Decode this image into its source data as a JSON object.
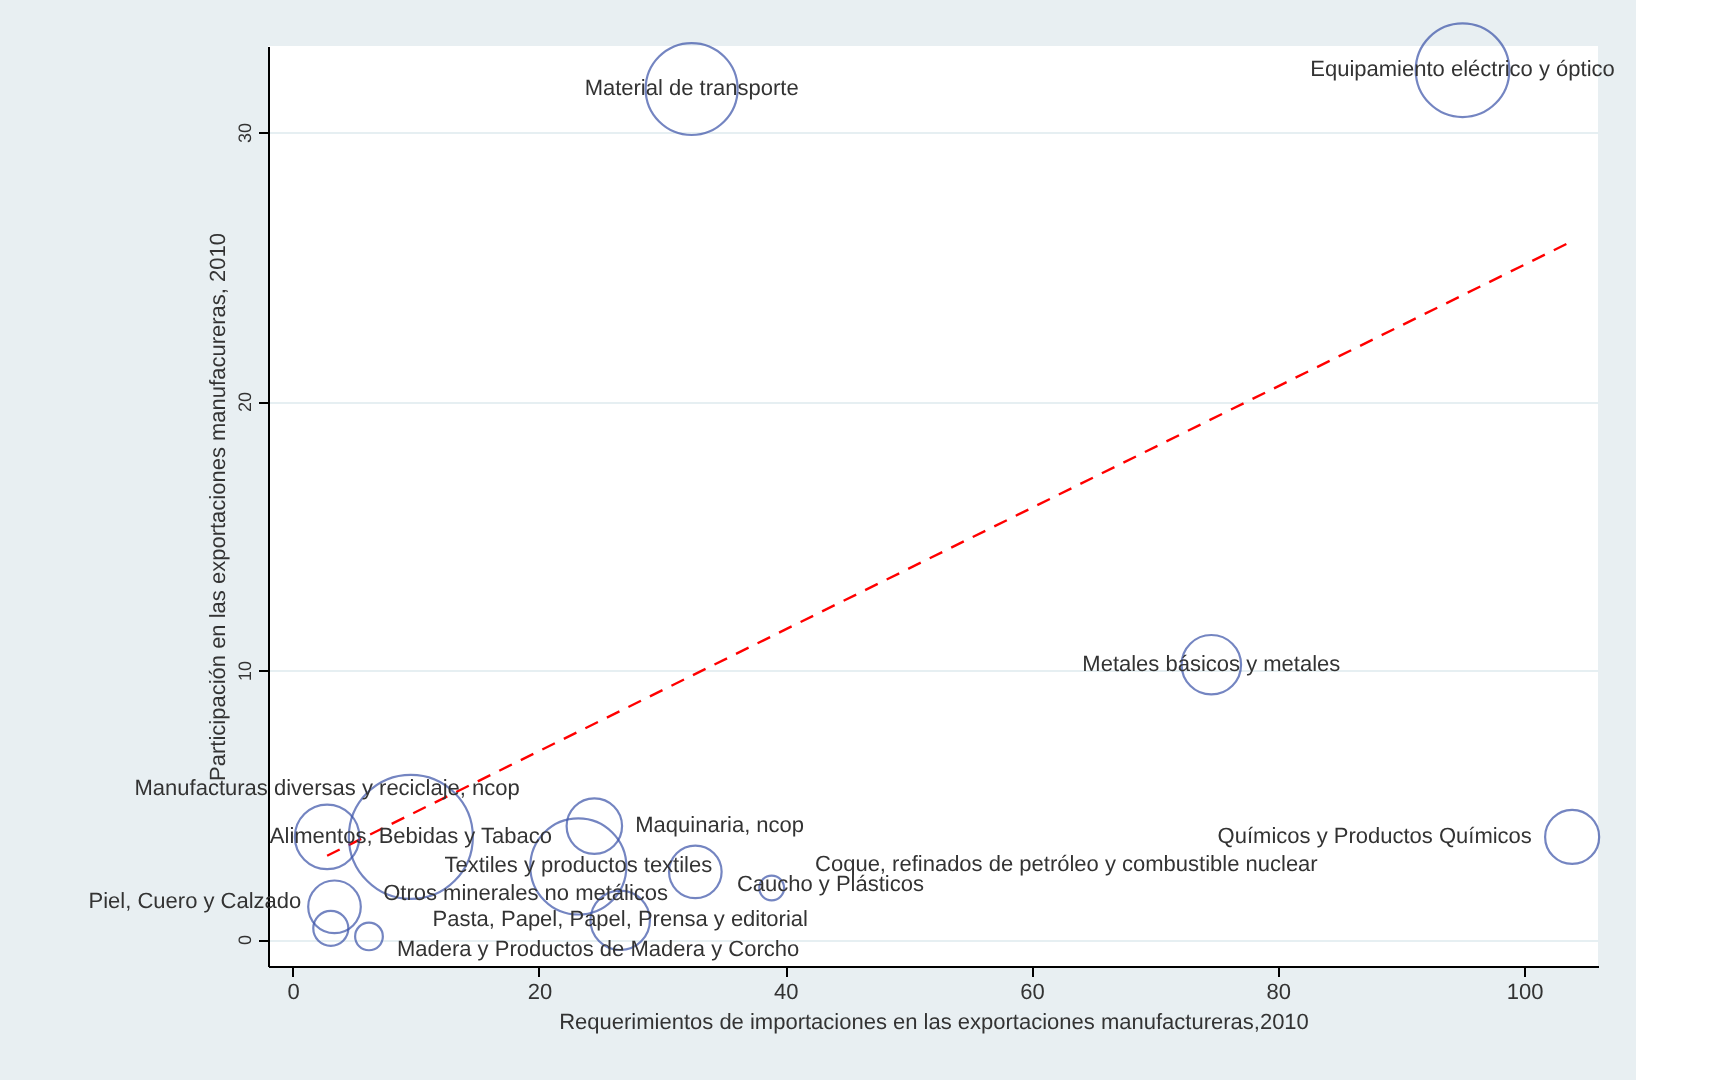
{
  "chart_data": {
    "type": "bubble",
    "xlabel": "Requerimientos de importaciones en las exportaciones manufactureras,2010",
    "ylabel": "Participación en las exportaciones manufacureras, 2010",
    "xlim": [
      -2,
      106
    ],
    "ylim": [
      -1,
      33.2
    ],
    "xticks": [
      0,
      20,
      40,
      60,
      80,
      100
    ],
    "yticks": [
      0,
      10,
      20,
      30
    ],
    "grid": "y",
    "series": [
      {
        "color": "#3a52a8",
        "x": [
          95.0,
          32.4,
          74.6,
          103.9,
          9.6,
          2.8,
          24.5,
          23.2,
          32.7,
          38.9,
          26.6,
          3.4,
          3.1,
          6.2
        ],
        "values": [
          32.3,
          31.6,
          10.2,
          3.8,
          3.8,
          3.8,
          4.2,
          2.7,
          2.5,
          1.9,
          0.7,
          1.2,
          0.4,
          0.1
        ],
        "sizes": [
          0.57,
          0.55,
          0.23,
          0.19,
          1,
          0.27,
          0.2,
          0.6,
          0.18,
          0.04,
          0.23,
          0.18,
          0.08,
          0.05
        ]
      },
      {
        "type": "line",
        "color": "#ff0000",
        "line_style": "dashed",
        "x": [
          2.8,
          103.7
        ],
        "values": [
          3.1,
          25.9
        ]
      }
    ],
    "annotations": [
      {
        "text": "Equipamiento eléctrico y óptico",
        "x": 95.0,
        "y": 32.3
      },
      {
        "text": "Material de transporte",
        "x": 32.4,
        "y": 31.6
      },
      {
        "text": "Metales básicos y metales",
        "x": 74.6,
        "y": 10.2
      },
      {
        "text": "Químicos y Productos Químicos",
        "x": 103.9,
        "y": 3.8
      },
      {
        "text": "Alimentos, Bebidas y Tabaco",
        "x": 9.6,
        "y": 3.8
      },
      {
        "text": "Manufacturas diversas y reciclaje, ncop",
        "x": 2.8,
        "y": 3.8
      },
      {
        "text": "Maquinaria, ncop",
        "x": 24.5,
        "y": 4.2
      },
      {
        "text": "Textiles y productos textiles",
        "x": 23.2,
        "y": 2.7
      },
      {
        "text": "Caucho y Plásticos",
        "x": 32.7,
        "y": 2.5
      },
      {
        "text": "Coque, refinados de petróleo y combustible nuclear",
        "x": 38.9,
        "y": 1.9
      },
      {
        "text": "Pasta, Papel, Papel, Prensa y editorial",
        "x": 26.6,
        "y": 0.7
      },
      {
        "text": "Otros minerales no metálicos",
        "x": 3.4,
        "y": 1.2
      },
      {
        "text": "Piel, Cuero y Calzado",
        "x": 3.1,
        "y": 0.4
      },
      {
        "text": "Madera y Productos de Madera y Corcho",
        "x": 6.2,
        "y": 0.1
      }
    ]
  }
}
